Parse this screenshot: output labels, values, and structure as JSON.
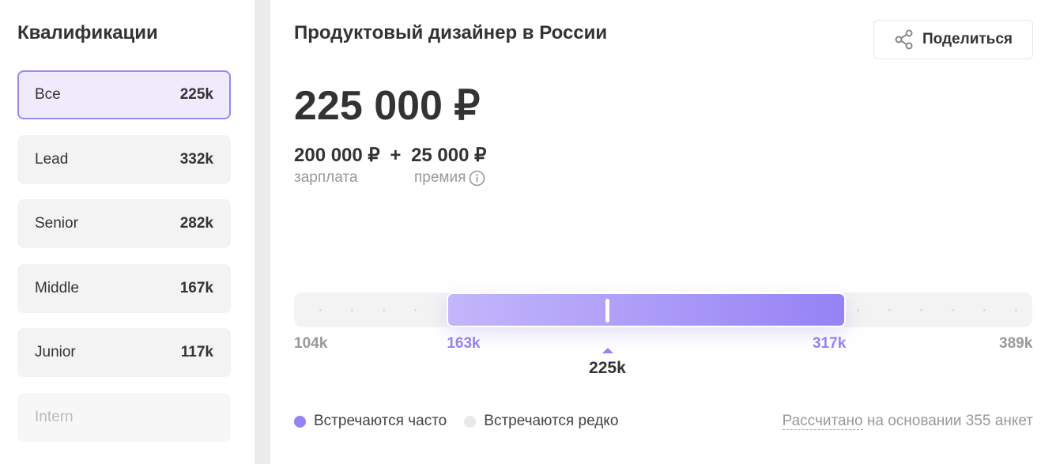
{
  "sidebar": {
    "title": "Квалификации",
    "items": [
      {
        "label": "Все",
        "value": "225k",
        "state": "active"
      },
      {
        "label": "Lead",
        "value": "332k",
        "state": "normal"
      },
      {
        "label": "Senior",
        "value": "282k",
        "state": "normal"
      },
      {
        "label": "Middle",
        "value": "167k",
        "state": "normal"
      },
      {
        "label": "Junior",
        "value": "117k",
        "state": "normal"
      },
      {
        "label": "Intern",
        "value": "",
        "state": "disabled"
      }
    ]
  },
  "main": {
    "title": "Продуктовый дизайнер в России",
    "share_label": "Поделиться",
    "share_icon": "share-icon",
    "total": "225 000 ₽",
    "salary": "200 000 ₽",
    "plus": "+",
    "bonus": "25 000 ₽",
    "salary_label": "зарплата",
    "bonus_label": "премия",
    "info_icon": "info-icon"
  },
  "range": {
    "min": 104,
    "max": 389,
    "low": 163,
    "high": 317,
    "median": 225,
    "min_label": "104k",
    "max_label": "389k",
    "low_label": "163k",
    "high_label": "317k",
    "median_label": "225k",
    "accent": "#9682f5"
  },
  "legend": {
    "often": "Встречаются часто",
    "rare": "Встречаются редко",
    "often_color": "#9682f5",
    "rare_color": "#e8e8e8"
  },
  "footer": {
    "link": "Рассчитано",
    "text": " на основании 355 анкет"
  }
}
